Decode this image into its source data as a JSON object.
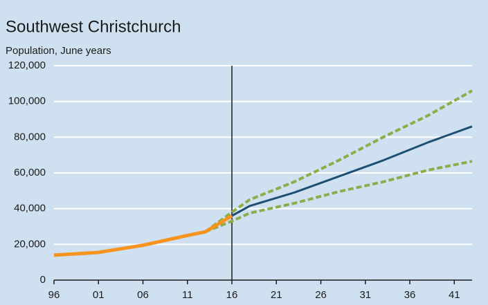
{
  "chart_data": {
    "type": "line",
    "title": "Southwest Christchurch",
    "subtitle": "Population, June years",
    "xlim": [
      1996,
      2043
    ],
    "xticks": [
      {
        "value": 1996,
        "label": "96"
      },
      {
        "value": 2001,
        "label": "01"
      },
      {
        "value": 2006,
        "label": "06"
      },
      {
        "value": 2011,
        "label": "11"
      },
      {
        "value": 2016,
        "label": "16"
      },
      {
        "value": 2021,
        "label": "21"
      },
      {
        "value": 2026,
        "label": "26"
      },
      {
        "value": 2031,
        "label": "31"
      },
      {
        "value": 2036,
        "label": "36"
      },
      {
        "value": 2041,
        "label": "41"
      }
    ],
    "ylim": [
      0,
      120000
    ],
    "yticks": [
      0,
      {
        "value": 20000,
        "label": "20,000"
      },
      {
        "value": 40000,
        "label": "40,000"
      },
      {
        "value": 60000,
        "label": "60,000"
      },
      {
        "value": 80000,
        "label": "80,000"
      },
      {
        "value": 100000,
        "label": "100,000"
      },
      {
        "value": 120000,
        "label": "120,000"
      }
    ],
    "grid": true,
    "vline": 2016,
    "series": [
      {
        "color": "#8cad4a",
        "dashed": true,
        "x": [
          2013,
          2016,
          2018,
          2023,
          2028,
          2033,
          2038,
          2043
        ],
        "values": [
          27000,
          38000,
          45000,
          55000,
          67000,
          80000,
          92000,
          106000
        ]
      },
      {
        "color": "#8cad4a",
        "dashed": true,
        "x": [
          2013,
          2016,
          2018,
          2023,
          2028,
          2033,
          2038,
          2043
        ],
        "values": [
          27000,
          33000,
          37500,
          43000,
          49500,
          55000,
          61500,
          66500
        ]
      },
      {
        "color": "#1d4f73",
        "dashed": false,
        "x": [
          2016,
          2018,
          2023,
          2028,
          2033,
          2038,
          2043
        ],
        "values": [
          36000,
          41500,
          49000,
          58000,
          67000,
          77000,
          86000
        ]
      },
      {
        "color": "#f7931e",
        "dashed": false,
        "width": 5,
        "x": [
          1996,
          2001,
          2006,
          2011,
          2013,
          2016
        ],
        "values": [
          14000,
          15500,
          19500,
          25000,
          27000,
          36000
        ]
      }
    ]
  }
}
